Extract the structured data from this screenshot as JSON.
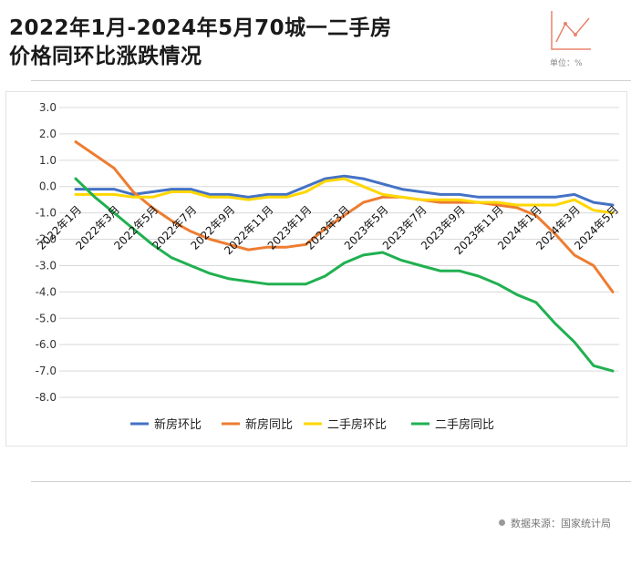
{
  "header": {
    "title_line1": "2022年1月-2024年5月70城一二手房",
    "title_line2": "价格同环比涨跌情况",
    "unit_label": "单位：%"
  },
  "footer": {
    "source": "数据来源：国家统计局"
  },
  "colors": {
    "new_mom": "#4472c4",
    "new_yoy": "#ed7d31",
    "used_mom": "#ffd700",
    "used_yoy": "#20b050",
    "accent": "#e8836b"
  },
  "chart_data": {
    "type": "line",
    "x": [
      "2022年1月",
      "2022年2月",
      "2022年3月",
      "2022年4月",
      "2022年5月",
      "2022年6月",
      "2022年7月",
      "2022年8月",
      "2022年9月",
      "2022年10月",
      "2022年11月",
      "2022年12月",
      "2023年1月",
      "2023年2月",
      "2023年3月",
      "2023年4月",
      "2023年5月",
      "2023年6月",
      "2023年7月",
      "2023年8月",
      "2023年9月",
      "2023年10月",
      "2023年11月",
      "2023年12月",
      "2024年1月",
      "2024年2月",
      "2024年3月",
      "2024年4月",
      "2024年5月"
    ],
    "x_tick_labels": [
      "2022年1月",
      "2022年3月",
      "2022年5月",
      "2022年7月",
      "2022年9月",
      "2022年11月",
      "2023年1月",
      "2023年3月",
      "2023年5月",
      "2023年7月",
      "2023年9月",
      "2023年11月",
      "2024年1月",
      "2024年3月",
      "2024年5月"
    ],
    "y_tick_labels": [
      "3.0",
      "2.0",
      "1.0",
      "0.0",
      "-1.0",
      "-2.0",
      "-3.0",
      "-4.0",
      "-5.0",
      "-6.0",
      "-7.0",
      "-8.0"
    ],
    "ylim": [
      -8,
      3
    ],
    "grid": true,
    "legend_position": "bottom",
    "series": [
      {
        "name": "新房环比",
        "values": [
          -0.1,
          -0.1,
          -0.1,
          -0.3,
          -0.2,
          -0.1,
          -0.1,
          -0.3,
          -0.3,
          -0.4,
          -0.3,
          -0.3,
          0.0,
          0.3,
          0.4,
          0.3,
          0.1,
          -0.1,
          -0.2,
          -0.3,
          -0.3,
          -0.4,
          -0.4,
          -0.4,
          -0.4,
          -0.4,
          -0.3,
          -0.6,
          -0.7
        ]
      },
      {
        "name": "新房同比",
        "values": [
          1.7,
          1.2,
          0.7,
          -0.2,
          -0.8,
          -1.3,
          -1.7,
          -2.0,
          -2.2,
          -2.4,
          -2.3,
          -2.3,
          -2.2,
          -1.6,
          -1.1,
          -0.6,
          -0.4,
          -0.4,
          -0.5,
          -0.6,
          -0.6,
          -0.6,
          -0.7,
          -0.8,
          -1.1,
          -1.8,
          -2.6,
          -3.0,
          -4.0
        ]
      },
      {
        "name": "二手房环比",
        "values": [
          -0.3,
          -0.3,
          -0.3,
          -0.4,
          -0.4,
          -0.2,
          -0.2,
          -0.4,
          -0.4,
          -0.5,
          -0.4,
          -0.4,
          -0.2,
          0.2,
          0.3,
          0.0,
          -0.3,
          -0.4,
          -0.5,
          -0.5,
          -0.5,
          -0.6,
          -0.6,
          -0.7,
          -0.7,
          -0.7,
          -0.5,
          -0.9,
          -1.0
        ]
      },
      {
        "name": "二手房同比",
        "values": [
          0.3,
          -0.4,
          -1.0,
          -1.6,
          -2.2,
          -2.7,
          -3.0,
          -3.3,
          -3.5,
          -3.6,
          -3.7,
          -3.7,
          -3.7,
          -3.4,
          -2.9,
          -2.6,
          -2.5,
          -2.8,
          -3.0,
          -3.2,
          -3.2,
          -3.4,
          -3.7,
          -4.1,
          -4.4,
          -5.2,
          -5.9,
          -6.8,
          -7.0
        ]
      }
    ]
  }
}
